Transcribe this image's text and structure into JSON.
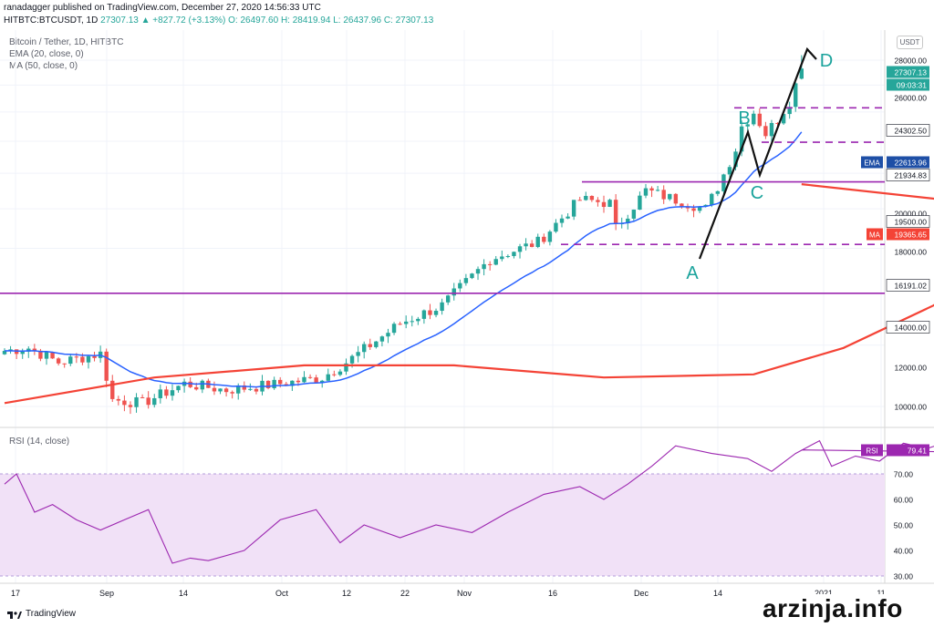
{
  "header": {
    "publisher_line": "ranadagger published on TradingView.com, December 27, 2020 14:56:33 UTC",
    "ohlc_prefix": "HITBTC:BTCUSDT, 1D",
    "ohlc_change": "27307.13 ▲ +827.72 (+3.13%) O: 26497.60 H: 28419.94 L: 26437.96 C: 27307.13"
  },
  "legend": {
    "symbol": "Bitcoin / Tether, 1D, HITBTC",
    "ema": "EMA (20, close, 0)",
    "ma": "MA (50, close, 0)",
    "rsi": "RSI (14, close)"
  },
  "currency_button": "USDT",
  "colors": {
    "up": "#26a69a",
    "down": "#ef5350",
    "ema": "#2962ff",
    "ma": "#f44336",
    "rsi": "#9c27b0",
    "rsi_band": "#f1e1f7",
    "hline": "#9c27b0",
    "annot": "#111111",
    "letters": "#1ba39c"
  },
  "price_labels": [
    {
      "text": "27307.13",
      "bg": "#26a69a",
      "fg": "#ffffff"
    },
    {
      "text": "09:03:31",
      "bg": "#26a69a",
      "fg": "#ffffff"
    },
    {
      "text": "24302.50",
      "bg": "#ffffff",
      "fg": "#131722"
    },
    {
      "text": "22613.96",
      "bg": "#1e4fa6",
      "fg": "#ffffff",
      "tag": "EMA"
    },
    {
      "text": "21934.83",
      "bg": "#ffffff",
      "fg": "#131722"
    },
    {
      "text": "19500.00",
      "bg": "#ffffff",
      "fg": "#131722"
    },
    {
      "text": "19365.65",
      "bg": "#f44336",
      "fg": "#ffffff",
      "tag": "MA"
    },
    {
      "text": "16191.02",
      "bg": "#ffffff",
      "fg": "#131722"
    },
    {
      "text": "14000.00",
      "bg": "#ffffff",
      "fg": "#131722"
    },
    {
      "text": "79.41",
      "bg": "#9c27b0",
      "fg": "#ffffff",
      "tag": "RSI"
    }
  ],
  "price_axis_ticks": [
    "28000.00",
    "26000.00",
    "20000.00",
    "18000.00",
    "12000.00",
    "10000.00"
  ],
  "rsi_axis_ticks": [
    "70.00",
    "60.00",
    "50.00",
    "40.00",
    "30.00"
  ],
  "x_axis_labels": [
    "17",
    "Sep",
    "14",
    "Oct",
    "12",
    "22",
    "Nov",
    "16",
    "Dec",
    "14",
    "2021",
    "11"
  ],
  "annotations": [
    "A",
    "B",
    "C",
    "D"
  ],
  "footer": {
    "brand": "TradingView"
  },
  "watermark": "arzinja.info",
  "chart_data": {
    "type": "candlestick",
    "title": "Bitcoin / Tether, 1D, HITBTC",
    "price_scale": "log",
    "ylim": [
      9300,
      30500
    ],
    "horizontal_levels": [
      24302.5,
      21934.83,
      19500,
      16191.02,
      14000
    ],
    "series": [
      {
        "name": "EMA (20, close, 0)",
        "last": 22613.96
      },
      {
        "name": "MA (50, close, 0)",
        "last": 19365.65
      },
      {
        "name": "RSI (14, close)",
        "last": 79.41
      }
    ],
    "rsi_band": [
      30,
      70
    ],
    "close_path": [
      [
        "Aug 16",
        11800
      ],
      [
        "Aug 20",
        11900
      ],
      [
        "Aug 25",
        11400
      ],
      [
        "Sep 1",
        11700
      ],
      [
        "Sep 3",
        10200
      ],
      [
        "Sep 8",
        10100
      ],
      [
        "Sep 15",
        10700
      ],
      [
        "Sep 22",
        10500
      ],
      [
        "Oct 1",
        10700
      ],
      [
        "Oct 8",
        10900
      ],
      [
        "Oct 12",
        11400
      ],
      [
        "Oct 21",
        12800
      ],
      [
        "Oct 28",
        13500
      ],
      [
        "Nov 5",
        15500
      ],
      [
        "Nov 13",
        16300
      ],
      [
        "Nov 20",
        18500
      ],
      [
        "Nov 25",
        18300
      ],
      [
        "Nov 26",
        17000
      ],
      [
        "Dec 1",
        19000
      ],
      [
        "Dec 11",
        18000
      ],
      [
        "Dec 13",
        19200
      ],
      [
        "Dec 16",
        21500
      ],
      [
        "Dec 17",
        23000
      ],
      [
        "Dec 19",
        24000
      ],
      [
        "Dec 21",
        22500
      ],
      [
        "Dec 23",
        23500
      ],
      [
        "Dec 25",
        24800
      ],
      [
        "Dec 27",
        27307.13
      ]
    ]
  }
}
